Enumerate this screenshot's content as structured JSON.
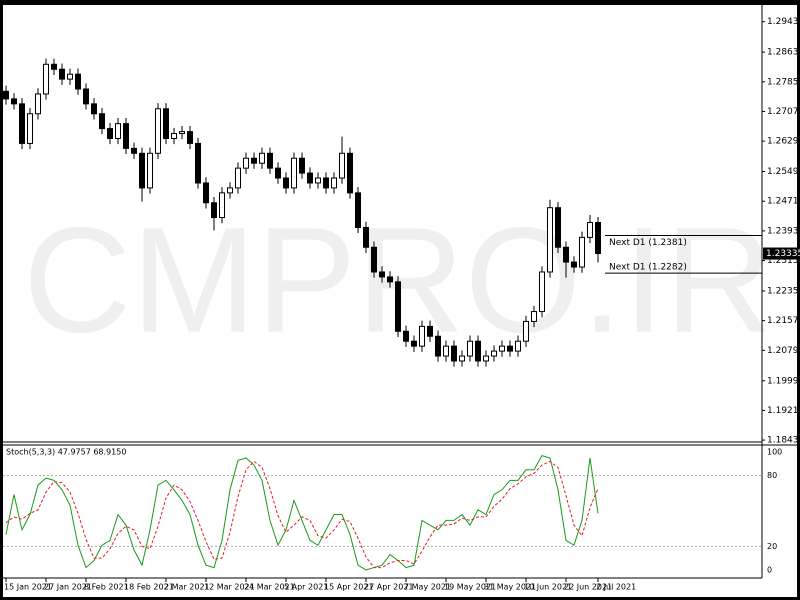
{
  "chart_data": [
    {
      "type": "candlestick",
      "watermark": "CMPRO.IR",
      "categories": [
        "15 Jan 2021",
        null,
        null,
        null,
        null,
        "27 Jan 2021",
        null,
        null,
        null,
        null,
        "8 Feb 2021",
        null,
        null,
        null,
        null,
        "18 Feb 2021",
        null,
        null,
        null,
        null,
        "2 Mar 2021",
        null,
        null,
        null,
        null,
        "12 Mar 2021",
        null,
        null,
        null,
        null,
        "24 Mar 2021",
        null,
        null,
        null,
        null,
        "5 Apr 2021",
        null,
        null,
        null,
        null,
        "15 Apr 2021",
        null,
        null,
        null,
        null,
        "27 Apr 2021",
        null,
        null,
        null,
        null,
        "7 May 2021",
        null,
        null,
        null,
        null,
        "19 May 2021",
        null,
        null,
        null,
        null,
        "31 May 2021",
        null,
        null,
        null,
        null,
        "10 Jun 2021",
        null,
        null,
        null,
        null,
        "22 Jun 2021",
        null,
        null,
        null,
        "2 Jul 2021"
      ],
      "open": [
        1.276,
        1.274,
        1.2727,
        1.2623,
        1.2701,
        1.2753,
        1.2831,
        1.2818,
        1.2792,
        1.2805,
        1.2766,
        1.2727,
        1.2701,
        1.2662,
        1.2636,
        1.2675,
        1.261,
        1.2597,
        1.2506,
        1.2597,
        1.2714,
        1.2636,
        1.2649,
        1.2654,
        1.2623,
        1.2519,
        1.2467,
        1.2428,
        1.2493,
        1.2506,
        1.2558,
        1.2584,
        1.2571,
        1.2597,
        1.2558,
        1.2532,
        1.2506,
        1.2584,
        1.2545,
        1.2519,
        1.2532,
        1.2506,
        1.2532,
        1.2597,
        1.2493,
        1.2402,
        1.235,
        1.2285,
        1.2272,
        1.2259,
        1.2129,
        1.2103,
        1.209,
        1.2142,
        1.2116,
        1.2064,
        1.209,
        1.2051,
        1.2064,
        1.2103,
        1.2051,
        1.2064,
        1.2077,
        1.209,
        1.2077,
        1.2103,
        1.2155,
        1.2181,
        1.2285,
        1.2454,
        1.235,
        1.2311,
        1.2298,
        1.2376,
        1.2415
      ],
      "high": [
        1.2775,
        1.2755,
        1.2742,
        1.2716,
        1.2768,
        1.2846,
        1.2846,
        1.2833,
        1.282,
        1.282,
        1.2781,
        1.2742,
        1.2716,
        1.2677,
        1.269,
        1.269,
        1.2625,
        1.2612,
        1.2612,
        1.2729,
        1.2729,
        1.2664,
        1.2669,
        1.2669,
        1.2638,
        1.2534,
        1.2482,
        1.2508,
        1.2521,
        1.2573,
        1.2599,
        1.2599,
        1.2612,
        1.2612,
        1.2573,
        1.2547,
        1.2599,
        1.2599,
        1.256,
        1.2547,
        1.2547,
        1.2547,
        1.2641,
        1.2612,
        1.2508,
        1.2417,
        1.2365,
        1.23,
        1.2287,
        1.2274,
        1.2144,
        1.2118,
        1.2157,
        1.2157,
        1.2131,
        1.2105,
        1.2105,
        1.2079,
        1.2118,
        1.2118,
        1.2079,
        1.2092,
        1.2105,
        1.2105,
        1.2118,
        1.217,
        1.2196,
        1.23,
        1.2475,
        1.2469,
        1.2365,
        1.2326,
        1.2391,
        1.2435,
        1.243
      ],
      "low": [
        1.2725,
        1.2712,
        1.2608,
        1.2608,
        1.2686,
        1.2738,
        1.2803,
        1.2777,
        1.2777,
        1.2751,
        1.2712,
        1.2686,
        1.2647,
        1.2621,
        1.2621,
        1.2595,
        1.2582,
        1.247,
        1.2491,
        1.2582,
        1.2621,
        1.2621,
        1.2634,
        1.2608,
        1.2504,
        1.2452,
        1.2394,
        1.2413,
        1.2478,
        1.2491,
        1.2543,
        1.2556,
        1.2556,
        1.2543,
        1.2517,
        1.2491,
        1.2491,
        1.253,
        1.2504,
        1.2504,
        1.2491,
        1.2491,
        1.2517,
        1.2478,
        1.2387,
        1.2335,
        1.227,
        1.2257,
        1.2244,
        1.2114,
        1.2088,
        1.2075,
        1.2075,
        1.2101,
        1.2049,
        1.2049,
        1.2036,
        1.2036,
        1.2049,
        1.2036,
        1.2036,
        1.2049,
        1.2062,
        1.2062,
        1.2062,
        1.2088,
        1.214,
        1.2166,
        1.227,
        1.2335,
        1.227,
        1.2283,
        1.2283,
        1.2361,
        1.231
      ],
      "close": [
        1.274,
        1.2727,
        1.2623,
        1.2701,
        1.2753,
        1.2831,
        1.2818,
        1.2792,
        1.2805,
        1.2766,
        1.2727,
        1.2701,
        1.2662,
        1.2636,
        1.2675,
        1.261,
        1.2597,
        1.2506,
        1.2597,
        1.2714,
        1.2636,
        1.2649,
        1.2654,
        1.2623,
        1.2519,
        1.2467,
        1.2428,
        1.2493,
        1.2506,
        1.2558,
        1.2584,
        1.2571,
        1.2597,
        1.2558,
        1.2532,
        1.2506,
        1.2584,
        1.2545,
        1.2519,
        1.2532,
        1.2506,
        1.2532,
        1.2597,
        1.2493,
        1.2402,
        1.235,
        1.2285,
        1.2272,
        1.2259,
        1.2129,
        1.2103,
        1.209,
        1.2142,
        1.2116,
        1.2064,
        1.209,
        1.2051,
        1.2064,
        1.2103,
        1.2051,
        1.2064,
        1.2077,
        1.209,
        1.2077,
        1.2103,
        1.2155,
        1.2181,
        1.2285,
        1.2454,
        1.235,
        1.2311,
        1.2298,
        1.2376,
        1.2415,
        1.23335
      ],
      "ylim": [
        1.1838,
        1.2979
      ],
      "yticks": [
        {
          "value": 1.2943,
          "label": "1.29430"
        },
        {
          "value": 1.2863,
          "label": "1.28630"
        },
        {
          "value": 1.2785,
          "label": "1.27850"
        },
        {
          "value": 1.2707,
          "label": "1.27070"
        },
        {
          "value": 1.2629,
          "label": "1.26290"
        },
        {
          "value": 1.2549,
          "label": "1.25490"
        },
        {
          "value": 1.2471,
          "label": "1.24710"
        },
        {
          "value": 1.2393,
          "label": "1.23930"
        },
        {
          "value": 1.2315,
          "label": "1.23150"
        },
        {
          "value": 1.2235,
          "label": "1.22350"
        },
        {
          "value": 1.2157,
          "label": "1.21570"
        },
        {
          "value": 1.2079,
          "label": "1.20790"
        },
        {
          "value": 1.1999,
          "label": "1.19990"
        },
        {
          "value": 1.1921,
          "label": "1.19210"
        },
        {
          "value": 1.1843,
          "label": "1.18430"
        }
      ],
      "current_price": 1.23335,
      "levels": [
        {
          "value": 1.2381,
          "label": "Next D1 (1.2381)"
        },
        {
          "value": 1.2282,
          "label": "Next D1 (1.2282)"
        }
      ]
    },
    {
      "type": "line",
      "title": "Stoch(5,3,3) 47.9757 68.9150",
      "series": [
        {
          "color": "#1a9a1a",
          "values": [
            30,
            64,
            34,
            47,
            72,
            78,
            76,
            68,
            55,
            21,
            2,
            8,
            21,
            25,
            47,
            38,
            17,
            4,
            34,
            72,
            76,
            68,
            59,
            47,
            21,
            4,
            2,
            25,
            68,
            93,
            95,
            89,
            76,
            42,
            21,
            34,
            59,
            42,
            25,
            21,
            34,
            47,
            47,
            30,
            4,
            0,
            2,
            4,
            13,
            8,
            2,
            4,
            42,
            38,
            34,
            42,
            42,
            47,
            38,
            51,
            47,
            64,
            68,
            76,
            76,
            85,
            85,
            97,
            95,
            68,
            25,
            21,
            42,
            95,
            47.9757
          ]
        },
        {
          "color": "#e02020",
          "dashed": true,
          "values": [
            40,
            45,
            43,
            48,
            51,
            66,
            75,
            74,
            66,
            48,
            26,
            10,
            10,
            18,
            31,
            37,
            34,
            20,
            18,
            37,
            61,
            72,
            68,
            58,
            42,
            24,
            9,
            10,
            32,
            62,
            85,
            92,
            87,
            69,
            46,
            32,
            38,
            45,
            42,
            29,
            27,
            34,
            43,
            41,
            27,
            11,
            2,
            2,
            6,
            8,
            8,
            5,
            16,
            28,
            38,
            38,
            39,
            44,
            42,
            45,
            45,
            54,
            60,
            69,
            73,
            79,
            82,
            89,
            92,
            87,
            63,
            38,
            29,
            53,
            68.915
          ]
        }
      ],
      "ylim": [
        -6,
        106
      ],
      "yticks": [
        100,
        80,
        20,
        0
      ],
      "grid": true
    }
  ]
}
